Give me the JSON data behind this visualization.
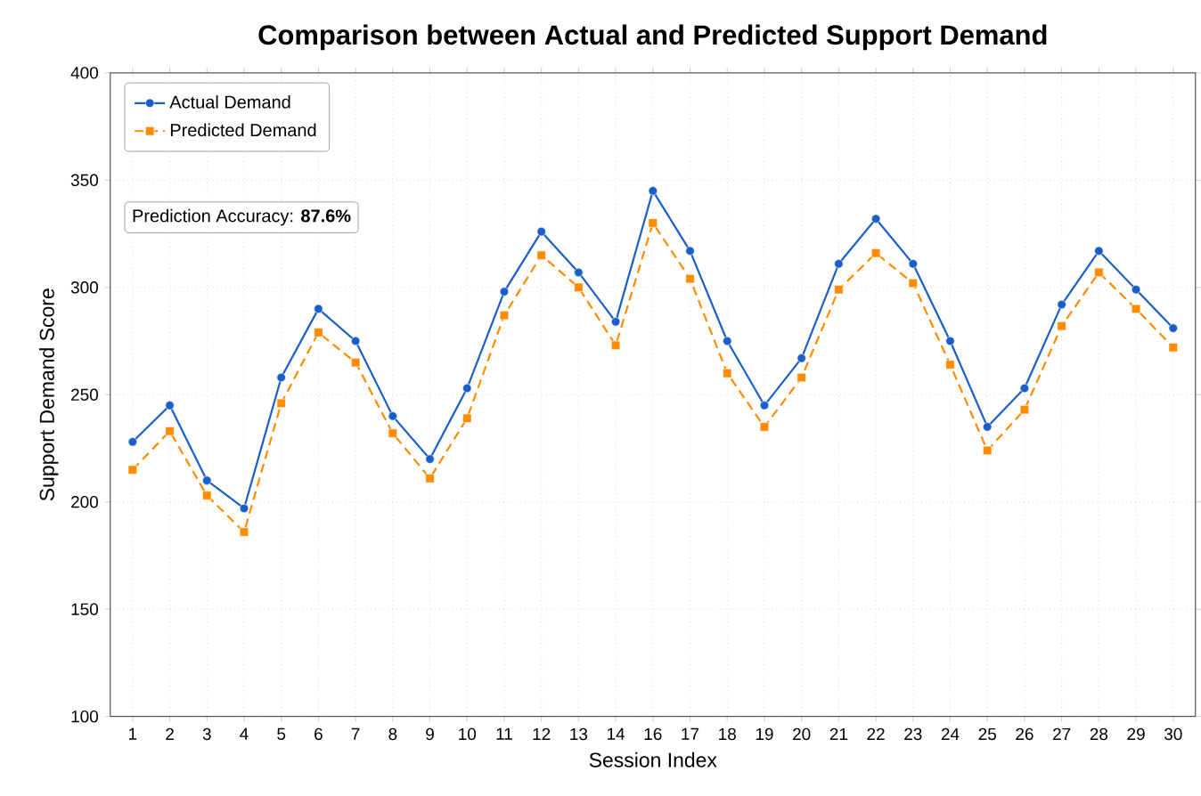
{
  "chart_data": {
    "type": "line",
    "title": "Comparison between Actual and Predicted Support Demand",
    "xlabel": "Session Index",
    "ylabel": "Support Demand Score",
    "categories": [
      "1",
      "2",
      "3",
      "4",
      "5",
      "6",
      "7",
      "8",
      "9",
      "10",
      "11",
      "12",
      "13",
      "14",
      "16",
      "17",
      "18",
      "19",
      "20",
      "21",
      "22",
      "23",
      "24",
      "25",
      "26",
      "27",
      "28",
      "29",
      "30"
    ],
    "series": [
      {
        "name": "Actual Demand",
        "color": "#1a5fc8",
        "marker": "circle",
        "line_style": "solid",
        "values": [
          228,
          245,
          210,
          197,
          258,
          290,
          275,
          240,
          220,
          253,
          298,
          326,
          307,
          284,
          345,
          317,
          275,
          245,
          267,
          311,
          332,
          311,
          275,
          235,
          253,
          292,
          317,
          299,
          281
        ]
      },
      {
        "name": "Predicted Demand",
        "color": "#ff8c00",
        "marker": "square",
        "line_style": "dashed",
        "values": [
          215,
          233,
          203,
          186,
          246,
          279,
          265,
          232,
          211,
          239,
          287,
          315,
          300,
          273,
          330,
          304,
          260,
          235,
          258,
          299,
          316,
          302,
          264,
          224,
          243,
          282,
          307,
          290,
          272
        ]
      }
    ],
    "ylim": [
      100,
      400
    ],
    "yticks": [
      100,
      150,
      200,
      250,
      300,
      350,
      400
    ],
    "grid": true,
    "legend": "top left",
    "annotations": [
      "Prediction Accuracy: **87.6%**"
    ]
  }
}
